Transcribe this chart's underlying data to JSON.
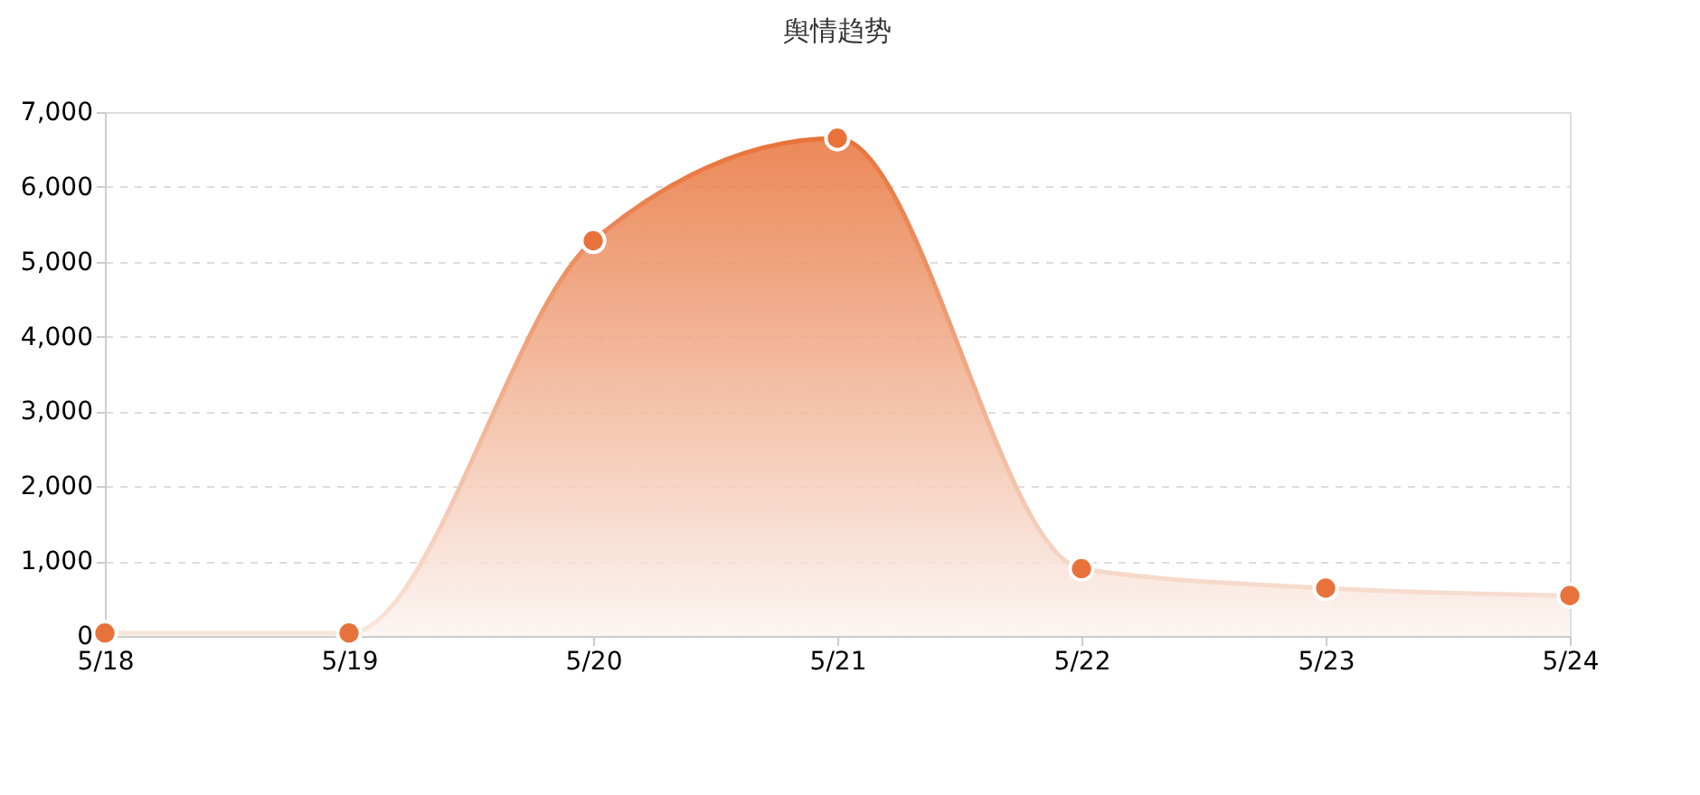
{
  "chart_data": {
    "type": "area",
    "title": "舆情趋势",
    "categories": [
      "5/18",
      "5/19",
      "5/20",
      "5/21",
      "5/22",
      "5/23",
      "5/24"
    ],
    "series": [
      {
        "color": "#e8733a",
        "values": [
          40,
          40,
          5280,
          6650,
          900,
          640,
          540
        ]
      }
    ],
    "ylim": [
      0,
      7000
    ],
    "yticks": [
      0,
      {
        "value": 1000,
        "label": "1,000"
      },
      {
        "value": 2000,
        "label": "2,000"
      },
      {
        "value": 3000,
        "label": "3,000"
      },
      {
        "value": 4000,
        "label": "4,000"
      },
      {
        "value": 5000,
        "label": "5,000"
      },
      {
        "value": 6000,
        "label": "6,000"
      },
      {
        "value": 7000,
        "label": "7,000"
      }
    ],
    "grid": "y",
    "marker": "circle",
    "line_style": "solid"
  }
}
